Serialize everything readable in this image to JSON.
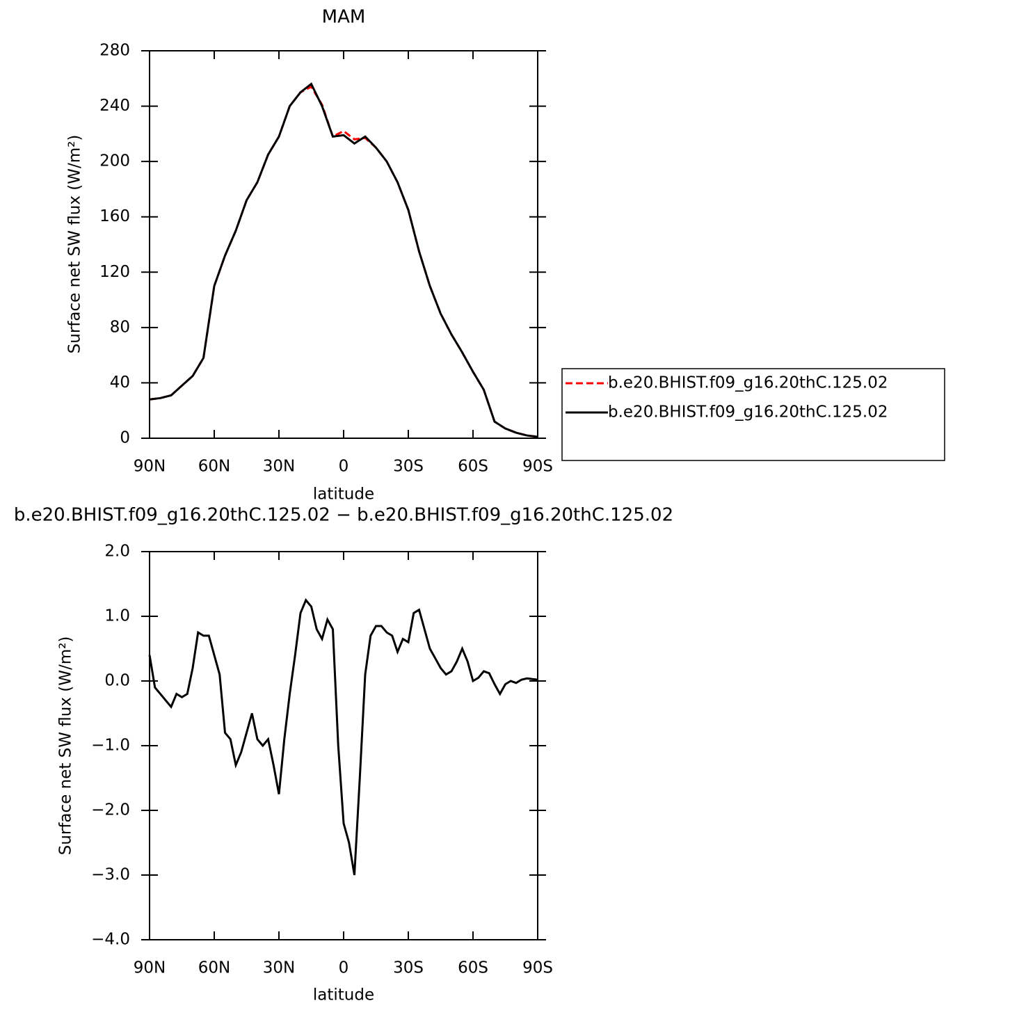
{
  "chart_data": [
    {
      "type": "line",
      "title": "MAM",
      "xlabel": "latitude",
      "ylabel": "Surface net SW flux (W/m²)",
      "x": [
        90,
        85,
        80,
        75,
        70,
        65,
        60,
        55,
        50,
        45,
        40,
        35,
        30,
        25,
        20,
        15,
        10,
        5,
        0,
        -5,
        -10,
        -15,
        -20,
        -25,
        -30,
        -35,
        -40,
        -45,
        -50,
        -55,
        -60,
        -65,
        -70,
        -75,
        -80,
        -85,
        -90
      ],
      "series": [
        {
          "name": "b.e20.BHIST.f09_g16.20thC.125.02",
          "color": "#ff0000",
          "linestyle": "dashed",
          "values": [
            28,
            29,
            31,
            38,
            45,
            58,
            110,
            132,
            150,
            172,
            185,
            205,
            218,
            240,
            250,
            254,
            241,
            218,
            222,
            216,
            217,
            210,
            200,
            185,
            165,
            135,
            110,
            90,
            75,
            62,
            48,
            35,
            12,
            7,
            4,
            2,
            1
          ]
        },
        {
          "name": "b.e20.BHIST.f09_g16.20thC.125.02",
          "color": "#000000",
          "linestyle": "solid",
          "values": [
            28,
            29,
            31,
            38,
            45,
            58,
            110,
            132,
            150,
            172,
            185,
            205,
            218,
            240,
            250,
            256,
            240,
            218,
            219,
            213,
            218,
            210,
            200,
            185,
            165,
            135,
            110,
            90,
            75,
            62,
            48,
            35,
            12,
            7,
            4,
            2,
            1
          ]
        }
      ],
      "xlim": [
        90,
        -90
      ],
      "xticks": [
        {
          "value": 90,
          "label": "90N"
        },
        {
          "value": 60,
          "label": "60N"
        },
        {
          "value": 30,
          "label": "30N"
        },
        0,
        {
          "value": -30,
          "label": "30S"
        },
        {
          "value": -60,
          "label": "60S"
        },
        {
          "value": -90,
          "label": "90S"
        }
      ],
      "ylim": [
        0,
        280
      ],
      "yticks": [
        0,
        40,
        80,
        120,
        160,
        200,
        240,
        280
      ],
      "legend": "right"
    },
    {
      "type": "line",
      "title": "b.e20.BHIST.f09_g16.20thC.125.02 − b.e20.BHIST.f09_g16.20thC.125.02",
      "xlabel": "latitude",
      "ylabel": "Surface net SW flux (W/m²)",
      "x": [
        90,
        87.5,
        85,
        82.5,
        80,
        77.5,
        75,
        72.5,
        70,
        67.5,
        65,
        62.5,
        60,
        57.5,
        55,
        52.5,
        50,
        47.5,
        45,
        42.5,
        40,
        37.5,
        35,
        32.5,
        30,
        27.5,
        25,
        22.5,
        20,
        17.5,
        15,
        12.5,
        10,
        7.5,
        5,
        2.5,
        0,
        -2.5,
        -5,
        -7.5,
        -10,
        -12.5,
        -15,
        -17.5,
        -20,
        -22.5,
        -25,
        -27.5,
        -30,
        -32.5,
        -35,
        -37.5,
        -40,
        -42.5,
        -45,
        -47.5,
        -50,
        -52.5,
        -55,
        -57.5,
        -60,
        -62.5,
        -65,
        -67.5,
        -70,
        -72.5,
        -75,
        -77.5,
        -80,
        -82.5,
        -85,
        -87.5,
        -90
      ],
      "series": [
        {
          "color": "#000000",
          "linestyle": "solid",
          "values": [
            0.4,
            -0.1,
            -0.2,
            -0.3,
            -0.4,
            -0.2,
            -0.25,
            -0.2,
            0.2,
            0.75,
            0.7,
            0.7,
            0.4,
            0.1,
            -0.8,
            -0.9,
            -1.3,
            -1.1,
            -0.8,
            -0.5,
            -0.9,
            -1.0,
            -0.9,
            -1.3,
            -1.75,
            -0.9,
            -0.2,
            0.4,
            1.05,
            1.25,
            1.15,
            0.8,
            0.65,
            0.95,
            0.8,
            -1.0,
            -2.2,
            -2.5,
            -3.0,
            -1.5,
            0.1,
            0.7,
            0.85,
            0.85,
            0.75,
            0.7,
            0.45,
            0.65,
            0.6,
            1.05,
            1.1,
            0.8,
            0.5,
            0.35,
            0.2,
            0.1,
            0.15,
            0.3,
            0.5,
            0.3,
            0.0,
            0.05,
            0.15,
            0.12,
            -0.05,
            -0.2,
            -0.05,
            0.0,
            -0.03,
            0.02,
            0.04,
            0.03,
            0.02
          ]
        }
      ],
      "xlim": [
        90,
        -90
      ],
      "xticks": [
        {
          "value": 90,
          "label": "90N"
        },
        {
          "value": 60,
          "label": "60N"
        },
        {
          "value": 30,
          "label": "30N"
        },
        0,
        {
          "value": -30,
          "label": "30S"
        },
        {
          "value": -60,
          "label": "60S"
        },
        {
          "value": -90,
          "label": "90S"
        }
      ],
      "ylim": [
        -4,
        2
      ],
      "yticks": [
        {
          "value": -4,
          "label": "−4.0"
        },
        {
          "value": -3,
          "label": "−3.0"
        },
        {
          "value": -2,
          "label": "−2.0"
        },
        {
          "value": -1,
          "label": "−1.0"
        },
        {
          "value": 0,
          "label": "0.0"
        },
        {
          "value": 1,
          "label": "1.0"
        },
        {
          "value": 2,
          "label": "2.0"
        }
      ]
    }
  ]
}
